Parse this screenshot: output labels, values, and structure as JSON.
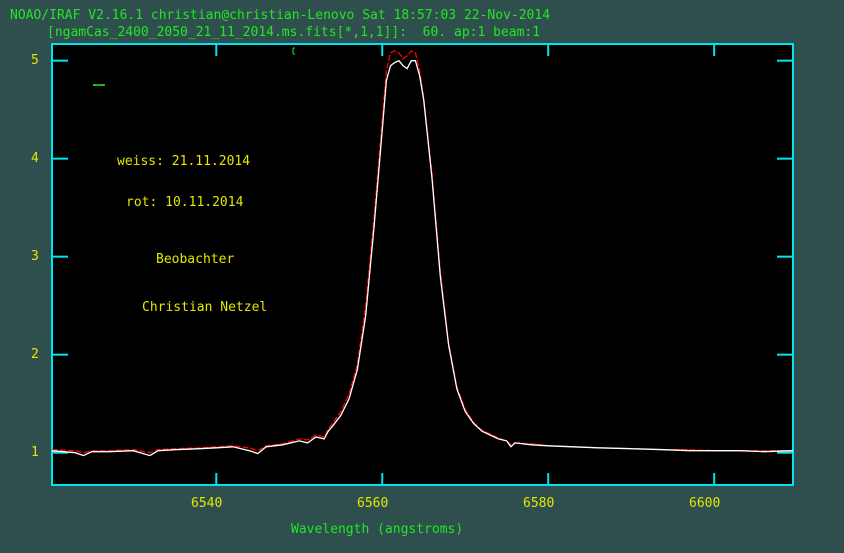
{
  "header": {
    "line1": "NOAO/IRAF V2.16.1 christian@christian-Lenovo Sat 18:57:03 22-Nov-2014",
    "line2": "[ngamCas_2400_2050_21_11_2014.ms.fits[*,1,1]]:  60. ap:1 beam:1"
  },
  "annotations": {
    "weiss": "weiss: 21.11.2014",
    "rot": "rot: 10.11.2014",
    "observer_label": "Beobachter",
    "observer_name": "Christian Netzel"
  },
  "colors": {
    "background": "#2f4f4f",
    "plot_bg": "#000000",
    "frame": "#00e5ee",
    "tick_labels": "#e6e600",
    "titles": "#22e622",
    "series_white": "#ffffff",
    "series_red": "#ff0000"
  },
  "axes": {
    "xlabel": "Wavelength (angstroms)",
    "xticks": [
      "6540",
      "6560",
      "6580",
      "6600"
    ],
    "yticks": [
      "1",
      "2",
      "3",
      "4",
      "5"
    ]
  },
  "chart_data": {
    "type": "line",
    "title": "[ngamCas_2400_2050_21_11_2014.ms.fits[*,1,1]]:  60. ap:1 beam:1",
    "xlabel": "Wavelength (angstroms)",
    "ylabel": "",
    "xlim": [
      6520.2,
      6609.5
    ],
    "ylim": [
      0.67,
      5.17
    ],
    "xticks": [
      6540,
      6560,
      6580,
      6600
    ],
    "yticks": [
      1,
      2,
      3,
      4,
      5
    ],
    "grid": false,
    "legend": "annotations: weiss = 21.11.2014 (white), rot = 10.11.2014 (red)",
    "x": [
      6520.2,
      6523,
      6524,
      6525,
      6527,
      6530,
      6532,
      6533,
      6535,
      6538,
      6540,
      6542,
      6544,
      6545,
      6546,
      6548,
      6550,
      6551,
      6552,
      6553,
      6553.5,
      6554,
      6555,
      6556,
      6557,
      6558,
      6559,
      6560,
      6560.5,
      6561,
      6561.5,
      6562,
      6562.5,
      6563,
      6563.5,
      6564,
      6564.5,
      6565,
      6566,
      6567,
      6568,
      6569,
      6570,
      6571,
      6572,
      6573,
      6574,
      6575,
      6575.5,
      6576,
      6578,
      6580,
      6583,
      6586,
      6590,
      6594,
      6597,
      6600,
      6603,
      6606,
      6609.5
    ],
    "series": [
      {
        "name": "weiss: 21.11.2014",
        "color": "#ffffff",
        "values": [
          1.02,
          1.0,
          0.97,
          1.01,
          1.01,
          1.02,
          0.97,
          1.02,
          1.03,
          1.04,
          1.05,
          1.06,
          1.02,
          0.99,
          1.06,
          1.08,
          1.12,
          1.1,
          1.16,
          1.14,
          1.22,
          1.27,
          1.38,
          1.55,
          1.85,
          2.4,
          3.3,
          4.3,
          4.8,
          4.95,
          4.98,
          5.0,
          4.95,
          4.92,
          5.0,
          5.0,
          4.85,
          4.6,
          3.8,
          2.8,
          2.1,
          1.65,
          1.42,
          1.3,
          1.22,
          1.18,
          1.14,
          1.12,
          1.06,
          1.1,
          1.08,
          1.07,
          1.06,
          1.05,
          1.04,
          1.03,
          1.02,
          1.02,
          1.02,
          1.01,
          1.02
        ]
      },
      {
        "name": "rot: 10.11.2014",
        "color": "#ff0000",
        "values": [
          1.03,
          1.02,
          1.0,
          1.02,
          1.02,
          1.03,
          1.0,
          1.03,
          1.04,
          1.05,
          1.06,
          1.07,
          1.05,
          1.02,
          1.07,
          1.09,
          1.14,
          1.13,
          1.18,
          1.16,
          1.24,
          1.3,
          1.42,
          1.6,
          1.9,
          2.5,
          3.4,
          4.4,
          4.9,
          5.08,
          5.1,
          5.08,
          5.02,
          5.05,
          5.1,
          5.08,
          4.9,
          4.62,
          3.85,
          2.85,
          2.12,
          1.67,
          1.44,
          1.31,
          1.23,
          1.19,
          1.15,
          1.12,
          1.08,
          1.1,
          1.09,
          1.07,
          1.06,
          1.05,
          1.04,
          1.03,
          1.03,
          1.02,
          1.02,
          1.02,
          1.02
        ]
      }
    ]
  }
}
